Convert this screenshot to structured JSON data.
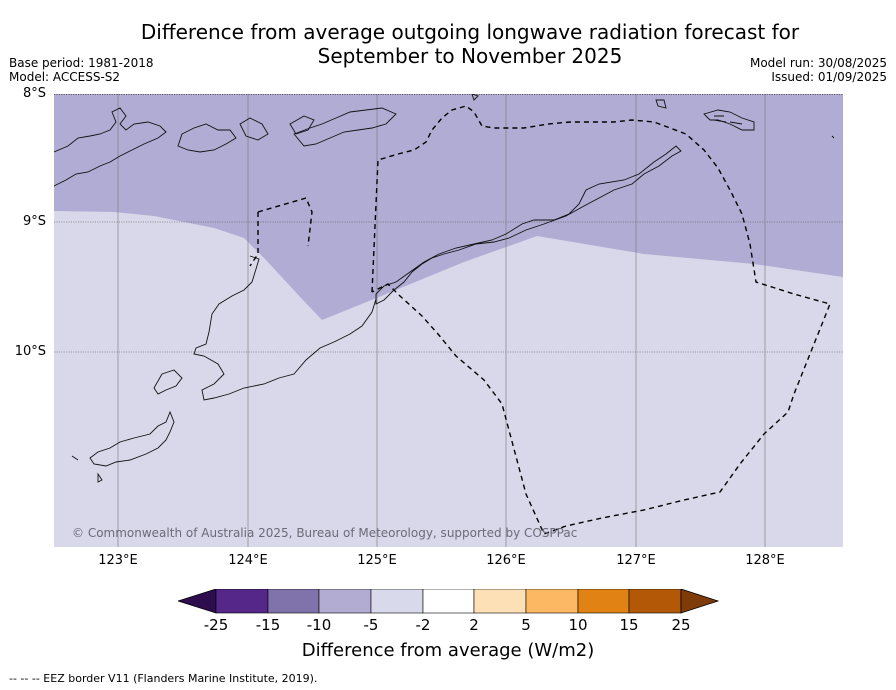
{
  "header": {
    "title_line1": "Difference from average outgoing longwave radiation forecast for",
    "title_line2": "September to November 2025",
    "base_period": "Base period: 1981-2018",
    "model": "Model: ACCESS-S2",
    "model_run": "Model run: 30/08/2025",
    "issued": "Issued: 01/09/2025"
  },
  "map": {
    "lat_labels": [
      "8°S",
      "9°S",
      "10°S"
    ],
    "lon_labels": [
      "123°E",
      "124°E",
      "125°E",
      "126°E",
      "127°E",
      "128°E"
    ],
    "copyright": "© Commonwealth of Australia 2025, Bureau of Meteorology, supported by COSPPac",
    "fill_colors": {
      "minus_10_to_minus_5": "#b0acd3",
      "minus_5_to_minus_2": "#d8d8ea"
    }
  },
  "colorbar": {
    "ticks": [
      "-25",
      "-15",
      "-10",
      "-5",
      "-2",
      "2",
      "5",
      "10",
      "15",
      "25"
    ],
    "colors": [
      "#2d0d4e",
      "#542788",
      "#8073ac",
      "#b2abd2",
      "#d8daeb",
      "#ffffff",
      "#fee0b6",
      "#fdb863",
      "#e08214",
      "#b35806",
      "#7f3b08"
    ],
    "label": "Difference from average (W/m2)"
  },
  "footer": {
    "legend": "--  --  -- EEZ border V11 (Flanders Marine Institute, 2019)."
  }
}
